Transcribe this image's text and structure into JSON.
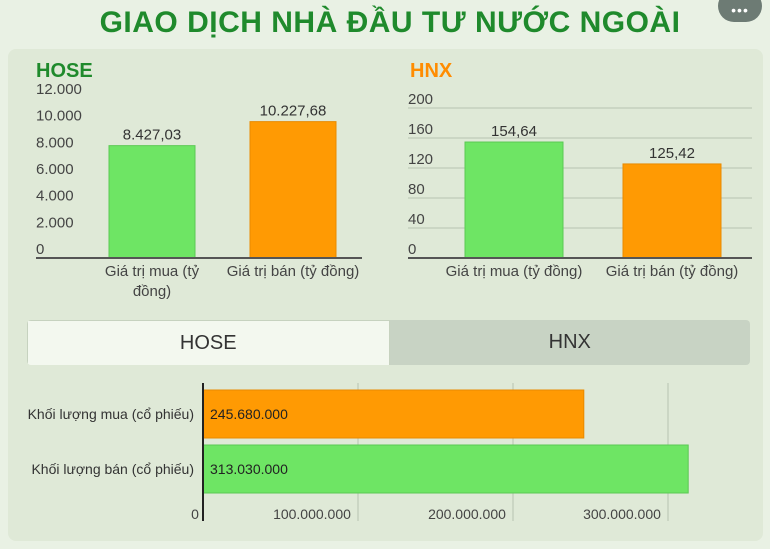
{
  "page": {
    "title": "GIAO DỊCH NHÀ ĐẦU TƯ NƯỚC NGOÀI",
    "more_icon": "more-dots-icon"
  },
  "colors": {
    "green": "#6ee564",
    "orange": "#ff9a03",
    "title": "#1f8a2c",
    "hnx_title": "#ff8c00"
  },
  "tabs": [
    {
      "label": "HOSE",
      "active": true
    },
    {
      "label": "HNX",
      "active": false
    }
  ],
  "chart_data": [
    {
      "type": "bar",
      "title": "HOSE",
      "categories": [
        "Giá trị mua (tỷ đồng)",
        "Giá trị bán (tỷ đồng)"
      ],
      "category_lines": [
        [
          "Giá trị mua (tỷ",
          "đồng)"
        ],
        [
          "Giá trị bán (tỷ đồng)"
        ]
      ],
      "values": [
        8427.03,
        10227.68
      ],
      "value_labels": [
        "8.427,03",
        "10.227,68"
      ],
      "ylim": [
        0,
        12000
      ],
      "yticks": [
        0,
        2000,
        4000,
        6000,
        8000,
        10000,
        12000
      ],
      "ytick_labels": [
        "0",
        "2.000",
        "4.000",
        "6.000",
        "8.000",
        "10.000",
        "12.000"
      ],
      "grid": false
    },
    {
      "type": "bar",
      "title": "HNX",
      "categories": [
        "Giá trị mua (tỷ đồng)",
        "Giá trị bán (tỷ đồng)"
      ],
      "category_lines": [
        [
          "Giá trị mua (tỷ đồng)"
        ],
        [
          "Giá trị bán (tỷ đồng)"
        ]
      ],
      "values": [
        154.64,
        125.42
      ],
      "value_labels": [
        "154,64",
        "125,42"
      ],
      "ylim": [
        0,
        200
      ],
      "yticks": [
        0,
        40,
        80,
        120,
        160,
        200
      ],
      "ytick_labels": [
        "0",
        "40",
        "80",
        "120",
        "160",
        "200"
      ],
      "grid": true
    },
    {
      "type": "bar",
      "orientation": "horizontal",
      "categories": [
        "Khối lượng mua (cổ phiếu)",
        "Khối lượng bán (cổ phiếu)"
      ],
      "values": [
        245680000,
        313030000
      ],
      "value_labels": [
        "245.680.000",
        "313.030.000"
      ],
      "xlim": [
        0,
        300000000
      ],
      "xticks": [
        0,
        100000000,
        200000000,
        300000000
      ],
      "xtick_labels": [
        "0",
        "100.000.000",
        "200.000.000",
        "300.000.000"
      ],
      "grid": true
    }
  ]
}
